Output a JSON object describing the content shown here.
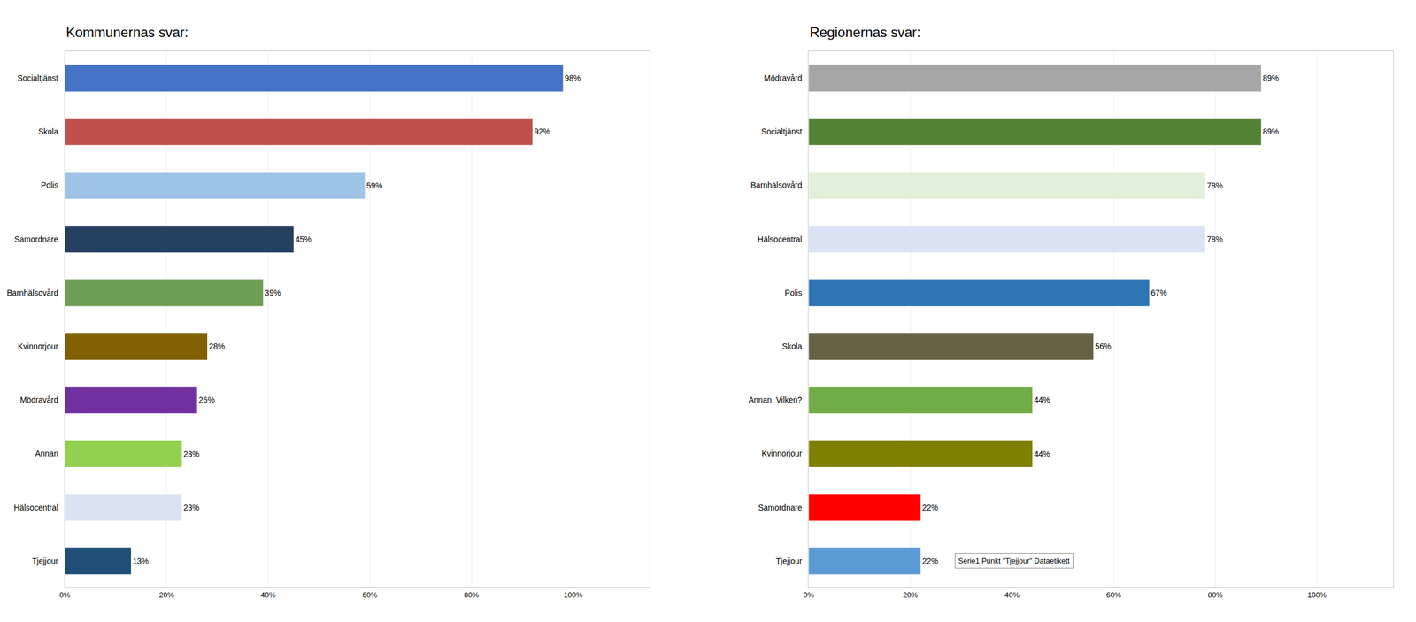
{
  "chart_data": [
    {
      "type": "bar",
      "orientation": "horizontal",
      "title": "Kommunernas svar:",
      "categories": [
        "Socialtjänst",
        "Skola",
        "Polis",
        "Samordnare",
        "Barnhälsovård",
        "Kvinnorjour",
        "Mödravård",
        "Annan",
        "Hälsocentral",
        "Tjejjour"
      ],
      "values": [
        98,
        92,
        59,
        45,
        39,
        28,
        26,
        23,
        23,
        13
      ],
      "value_labels": [
        "98%",
        "92%",
        "59%",
        "45%",
        "39%",
        "28%",
        "26%",
        "23%",
        "23%",
        "13%"
      ],
      "data_labels": true,
      "colors": [
        "#4472C4",
        "#C0504D",
        "#9DC3E6",
        "#243F60",
        "#6E9E56",
        "#806000",
        "#7030A0",
        "#92D050",
        "#DAE3F3",
        "#1F4E79"
      ],
      "xlim": [
        0,
        115
      ],
      "xticks": [
        {
          "value": 0,
          "label": "0%"
        },
        {
          "value": 20,
          "label": "20%"
        },
        {
          "value": 40,
          "label": "40%"
        },
        {
          "value": 60,
          "label": "60%"
        },
        {
          "value": 80,
          "label": "80%"
        },
        {
          "value": 100,
          "label": "100%"
        }
      ],
      "grid": true
    },
    {
      "type": "bar",
      "orientation": "horizontal",
      "title": "Regionernas svar:",
      "categories": [
        "Mödravård",
        "Socialtjänst",
        "Barnhälsovård",
        "Hälsocentral",
        "Polis",
        "Skola",
        "Annan. Vilken?",
        "Kvinnorjour",
        "Samordnare",
        "Tjejjour"
      ],
      "values": [
        89,
        89,
        78,
        78,
        67,
        56,
        44,
        44,
        22,
        22
      ],
      "value_labels": [
        "89%",
        "89%",
        "78%",
        "78%",
        "67%",
        "56%",
        "44%",
        "44%",
        "22%",
        "22%"
      ],
      "data_labels": true,
      "colors": [
        "#A6A6A6",
        "#548235",
        "#E2EFDA",
        "#DAE3F3",
        "#2E75B6",
        "#666044",
        "#70AD47",
        "#808000",
        "#FF0000",
        "#5B9BD5"
      ],
      "xlim": [
        0,
        115
      ],
      "xticks": [
        {
          "value": 0,
          "label": "0%"
        },
        {
          "value": 20,
          "label": "20%"
        },
        {
          "value": 40,
          "label": "40%"
        },
        {
          "value": 60,
          "label": "60%"
        },
        {
          "value": 80,
          "label": "80%"
        },
        {
          "value": 100,
          "label": "100%"
        }
      ],
      "grid": true,
      "annotations": [
        {
          "text": "Serie1 Punkt \"Tjejjour\" Dataetikett",
          "category": "Tjejjour"
        }
      ]
    }
  ]
}
